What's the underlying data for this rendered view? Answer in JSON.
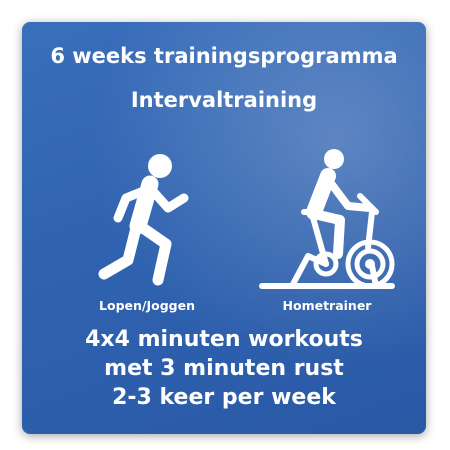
{
  "header": {
    "title_line1": "6 weeks trainingsprogramma",
    "title_line2": "Intervaltraining"
  },
  "activities": [
    {
      "label": "Lopen/Joggen",
      "icon": "running-person-icon"
    },
    {
      "label": "Hometrainer",
      "icon": "exercise-bike-icon"
    }
  ],
  "details": {
    "line1": "4x4 minuten workouts",
    "line2": "met 3 minuten rust",
    "line3": "2-3 keer per week"
  },
  "colors": {
    "background": "#2f63b0",
    "foreground": "#ffffff"
  }
}
